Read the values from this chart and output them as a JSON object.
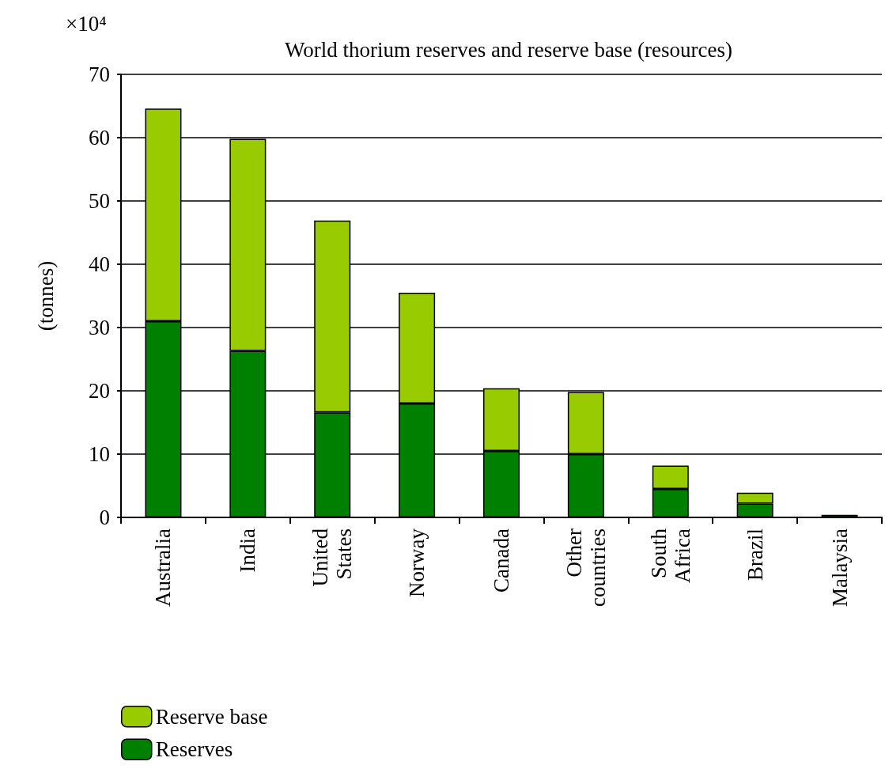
{
  "chart_data": {
    "type": "bar",
    "title": "World thorium reserves and reserve base (resources)",
    "ylabel": "(tonnes)",
    "annotations": [
      "×10⁴"
    ],
    "categories": [
      "Australia",
      "India",
      "United States",
      "Norway",
      "Canada",
      "Other countries",
      "South Africa",
      "Brazil",
      "Malaysia"
    ],
    "stacked": true,
    "series": [
      {
        "name": "Reserves",
        "color": "#008000",
        "values": [
          31.0,
          26.3,
          16.6,
          18.0,
          10.5,
          10.0,
          4.5,
          2.2,
          0.4
        ]
      },
      {
        "name": "Reserve base",
        "color": "#99cc00",
        "values": [
          33.6,
          33.5,
          30.3,
          17.5,
          9.9,
          9.8,
          3.7,
          1.7,
          null
        ]
      }
    ],
    "ylim": [
      0,
      70
    ],
    "yticks": [
      0,
      10,
      20,
      30,
      40,
      50,
      60,
      70
    ],
    "grid": "y",
    "legend": "bottom left"
  }
}
